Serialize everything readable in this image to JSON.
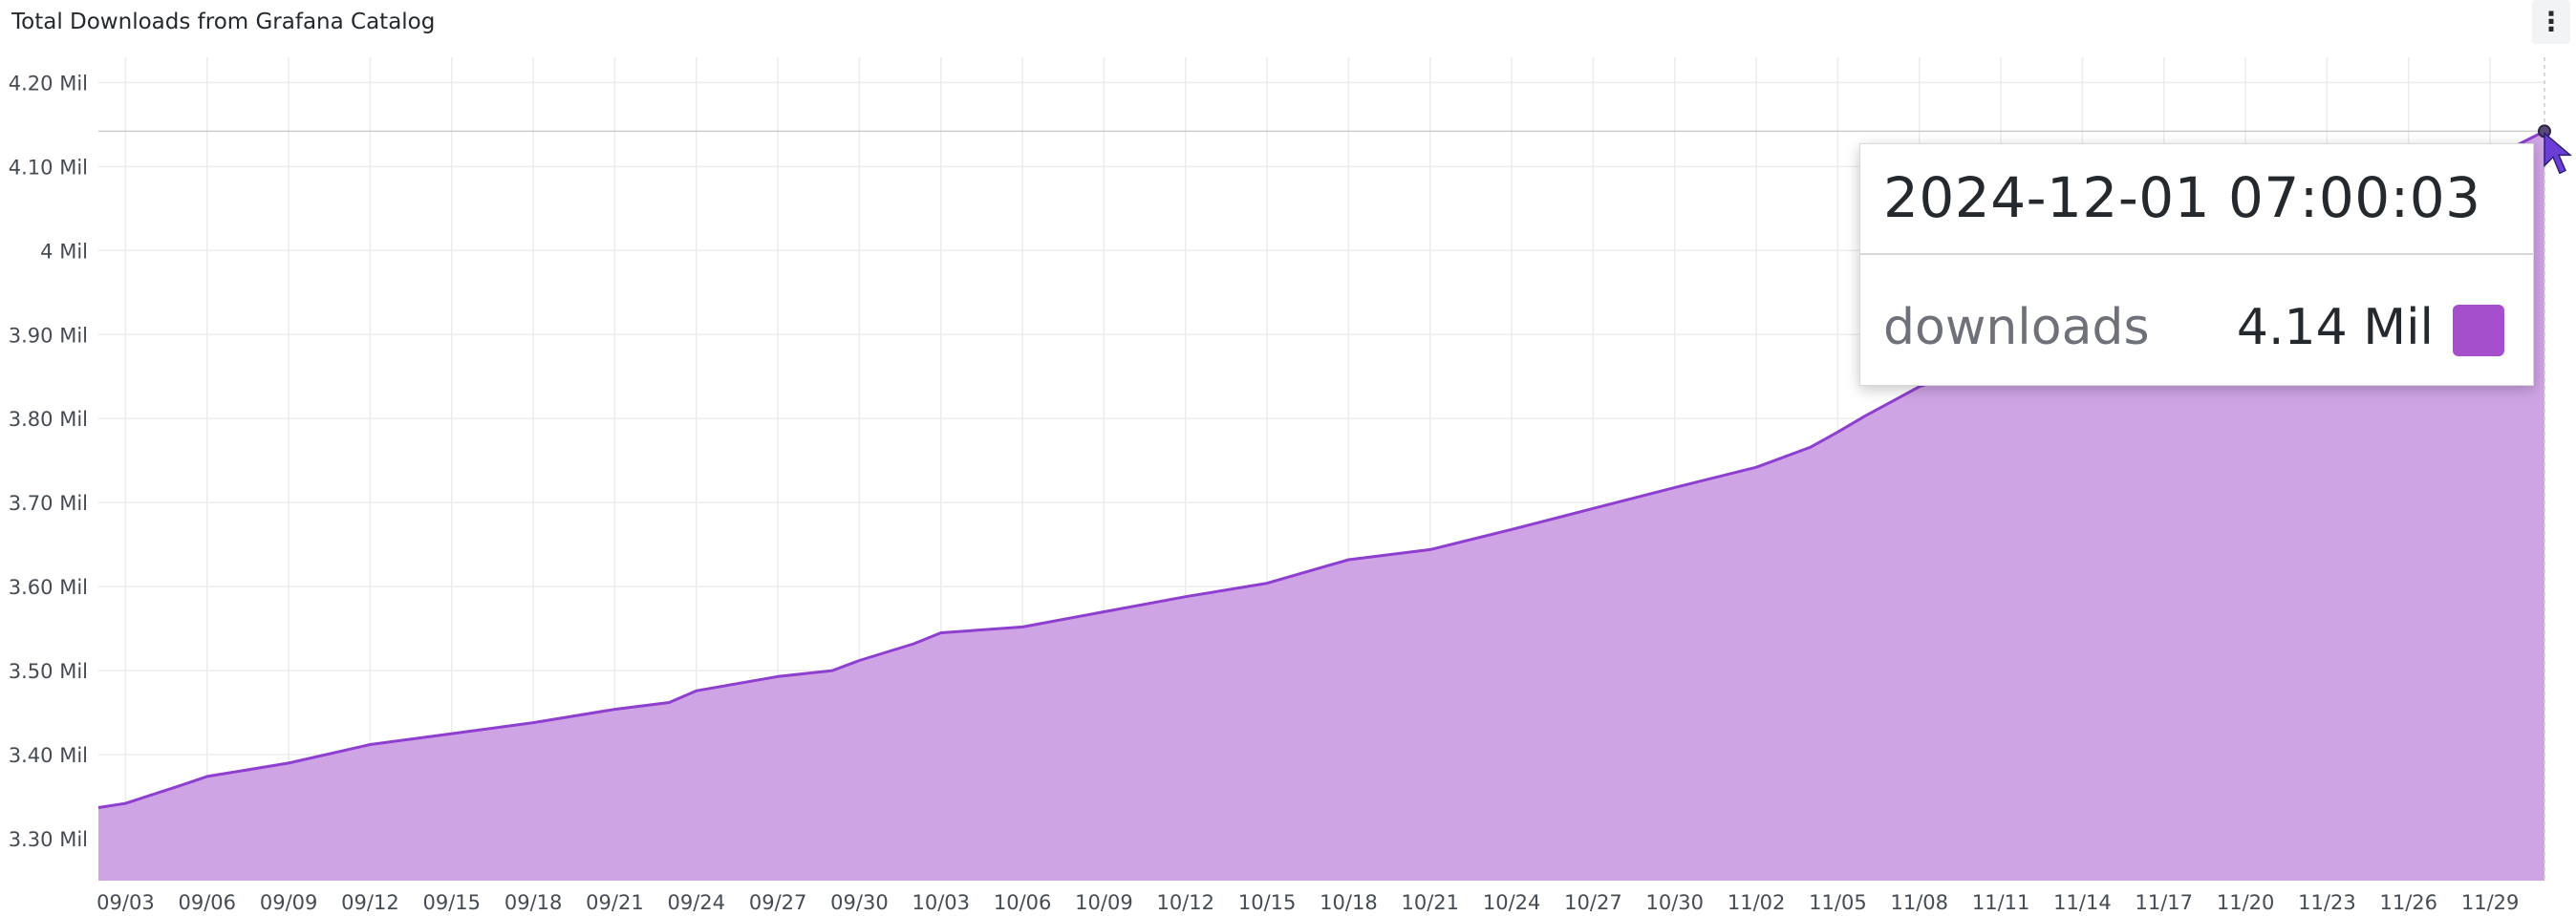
{
  "panel": {
    "title": "Total Downloads from Grafana Catalog",
    "menu_icon": "vertical-dots-icon"
  },
  "colors": {
    "series_line": "#8e3fcf",
    "series_fill": "#cfa4e4",
    "grid": "#ececec",
    "crosshair_line": "#cccccc"
  },
  "tooltip": {
    "time": "2024-12-01 07:00:03",
    "series_name": "downloads",
    "value": "4.14 Mil",
    "swatch_color": "#a64fcc"
  },
  "cursor_icon": "mouse-pointer-icon",
  "chart_data": {
    "type": "area",
    "title": "Total Downloads from Grafana Catalog",
    "xlabel": "",
    "ylabel": "",
    "ylim": [
      3.25,
      4.23
    ],
    "grid": true,
    "y_ticks": [
      {
        "value": 3.3,
        "label": "3.30 Mil"
      },
      {
        "value": 3.4,
        "label": "3.40 Mil"
      },
      {
        "value": 3.5,
        "label": "3.50 Mil"
      },
      {
        "value": 3.6,
        "label": "3.60 Mil"
      },
      {
        "value": 3.7,
        "label": "3.70 Mil"
      },
      {
        "value": 3.8,
        "label": "3.80 Mil"
      },
      {
        "value": 3.9,
        "label": "3.90 Mil"
      },
      {
        "value": 4.0,
        "label": "4 Mil"
      },
      {
        "value": 4.1,
        "label": "4.10 Mil"
      },
      {
        "value": 4.2,
        "label": "4.20 Mil"
      }
    ],
    "x_tick_labels": [
      "09/03",
      "09/06",
      "09/09",
      "09/12",
      "09/15",
      "09/18",
      "09/21",
      "09/24",
      "09/27",
      "09/30",
      "10/03",
      "10/06",
      "10/09",
      "10/12",
      "10/15",
      "10/18",
      "10/21",
      "10/24",
      "10/27",
      "10/30",
      "11/02",
      "11/05",
      "11/08",
      "11/11",
      "11/14",
      "11/17",
      "11/20",
      "11/23",
      "11/26",
      "11/29"
    ],
    "series": [
      {
        "name": "downloads",
        "unit": "Mil",
        "points": [
          {
            "x": "09/02",
            "y": 3.337
          },
          {
            "x": "09/03",
            "y": 3.342
          },
          {
            "x": "09/05",
            "y": 3.363
          },
          {
            "x": "09/06",
            "y": 3.374
          },
          {
            "x": "09/09",
            "y": 3.39
          },
          {
            "x": "09/12",
            "y": 3.412
          },
          {
            "x": "09/15",
            "y": 3.425
          },
          {
            "x": "09/18",
            "y": 3.438
          },
          {
            "x": "09/21",
            "y": 3.454
          },
          {
            "x": "09/23",
            "y": 3.462
          },
          {
            "x": "09/24",
            "y": 3.476
          },
          {
            "x": "09/27",
            "y": 3.493
          },
          {
            "x": "09/29",
            "y": 3.5
          },
          {
            "x": "09/30",
            "y": 3.512
          },
          {
            "x": "10/02",
            "y": 3.532
          },
          {
            "x": "10/03",
            "y": 3.545
          },
          {
            "x": "10/06",
            "y": 3.552
          },
          {
            "x": "10/09",
            "y": 3.57
          },
          {
            "x": "10/12",
            "y": 3.588
          },
          {
            "x": "10/15",
            "y": 3.604
          },
          {
            "x": "10/18",
            "y": 3.632
          },
          {
            "x": "10/21",
            "y": 3.644
          },
          {
            "x": "10/24",
            "y": 3.668
          },
          {
            "x": "10/27",
            "y": 3.693
          },
          {
            "x": "10/30",
            "y": 3.718
          },
          {
            "x": "11/02",
            "y": 3.742
          },
          {
            "x": "11/04",
            "y": 3.766
          },
          {
            "x": "11/05",
            "y": 3.784
          },
          {
            "x": "11/06",
            "y": 3.803
          },
          {
            "x": "11/08",
            "y": 3.838
          },
          {
            "x": "11/10",
            "y": 3.86
          },
          {
            "x": "11/14",
            "y": 3.9
          },
          {
            "x": "11/20",
            "y": 3.98
          },
          {
            "x": "11/26",
            "y": 4.06
          },
          {
            "x": "12/01",
            "y": 4.142
          }
        ]
      }
    ],
    "annotations": [
      {
        "type": "crosshair",
        "x": "12/01",
        "y": 4.142
      }
    ]
  }
}
